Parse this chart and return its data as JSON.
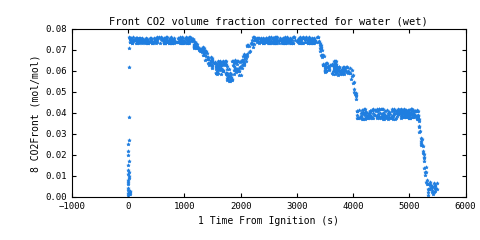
{
  "title": "Front CO2 volume fraction corrected for water (wet)",
  "xlabel": "1 Time From Ignition (s)",
  "ylabel": "8 CO2Front (mol/mol)",
  "xlim": [
    -1000,
    6000
  ],
  "ylim": [
    0,
    0.08
  ],
  "xticks": [
    -1000,
    0,
    1000,
    2000,
    3000,
    4000,
    5000,
    6000
  ],
  "yticks": [
    0,
    0.01,
    0.02,
    0.03,
    0.04,
    0.05,
    0.06,
    0.07,
    0.08
  ],
  "marker": "*",
  "color": "#1F7EE0",
  "markersize": 2.5,
  "markeredgewidth": 0.5,
  "bg_color": "#ffffff",
  "title_fontsize": 7.5,
  "label_fontsize": 7,
  "tick_fontsize": 6.5
}
